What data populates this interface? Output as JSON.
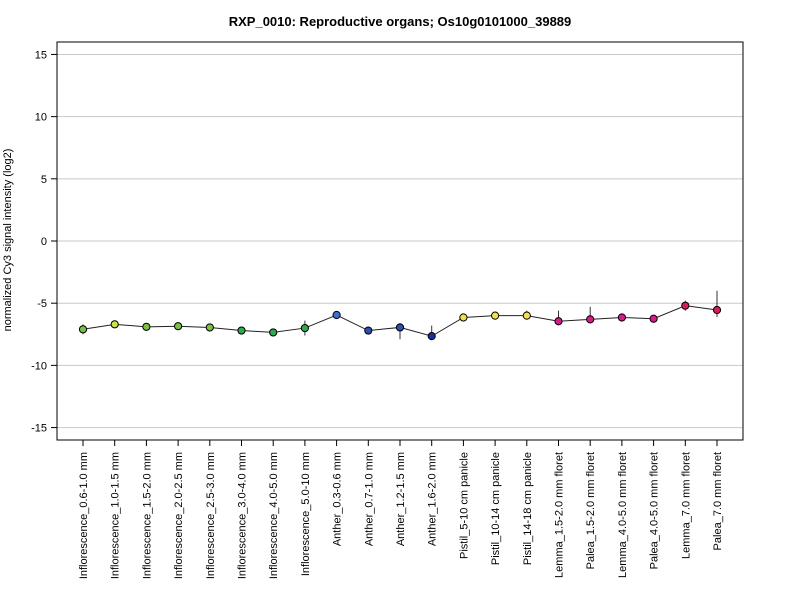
{
  "chart_data": {
    "type": "line",
    "title": "RXP_0010: Reproductive organs; Os10g0101000_39889",
    "xlabel": "",
    "ylabel": "normalized Cy3 signal intensity (log2)",
    "ylim": [
      -16,
      16
    ],
    "yticks": [
      15,
      10,
      5,
      0,
      -5,
      -10,
      -15
    ],
    "grid": "horizontal",
    "categories": [
      "Inflorescence_0.6-1.0 mm",
      "Inflorescence_1.0-1.5 mm",
      "Inflorescence_1.5-2.0 mm",
      "Inflorescence_2.0-2.5 mm",
      "Inflorescence_2.5-3.0 mm",
      "Inflorescence_3.0-4.0 mm",
      "Inflorescence_4.0-5.0 mm",
      "Inflorescence_5.0-10 mm",
      "Anther_0.3-0.6 mm",
      "Anther_0.7-1.0 mm",
      "Anther_1.2-1.5 mm",
      "Anther_1.6-2.0 mm",
      "Pistil_5-10 cm panicle",
      "Pistil_10-14 cm panicle",
      "Pistil_14-18 cm panicle",
      "Lemma_1.5-2.0 mm floret",
      "Palea_1.5-2.0 mm floret",
      "Lemma_4.0-5.0 mm floret",
      "Palea_4.0-5.0 mm floret",
      "Lemma_7.0 mm floret",
      "Palea_7.0 mm floret"
    ],
    "values": [
      -7.1,
      -6.7,
      -6.9,
      -6.85,
      -6.95,
      -7.2,
      -7.35,
      -7.0,
      -5.95,
      -7.2,
      -6.95,
      -7.65,
      -6.15,
      -6.0,
      -6.0,
      -6.45,
      -6.3,
      -6.15,
      -6.25,
      -5.2,
      -5.55
    ],
    "error_low": [
      -7.5,
      -6.8,
      -7.1,
      -7.0,
      -7.15,
      -7.5,
      -7.5,
      -7.6,
      -6.05,
      -7.3,
      -7.9,
      -7.8,
      -6.3,
      -6.1,
      -6.3,
      -6.7,
      -6.4,
      -6.25,
      -6.5,
      -5.6,
      -6.1
    ],
    "error_high": [
      -6.7,
      -6.6,
      -6.7,
      -6.7,
      -6.8,
      -6.9,
      -7.2,
      -6.4,
      -5.85,
      -7.1,
      -6.6,
      -6.8,
      -6.0,
      -5.9,
      -5.6,
      -5.6,
      -5.3,
      -6.05,
      -6.0,
      -4.8,
      -4.0
    ],
    "point_colors": [
      "#7bc043",
      "#c8e64a",
      "#7bc043",
      "#7bc043",
      "#7bc043",
      "#2fa84f",
      "#2fa84f",
      "#2fa84f",
      "#3a6fd8",
      "#2b4fb0",
      "#2b4fb0",
      "#1a2fa0",
      "#f4e04d",
      "#f4e04d",
      "#f4e04d",
      "#d81b8c",
      "#d81b8c",
      "#d81b8c",
      "#d81b8c",
      "#d81b5a",
      "#d81b5a"
    ]
  }
}
